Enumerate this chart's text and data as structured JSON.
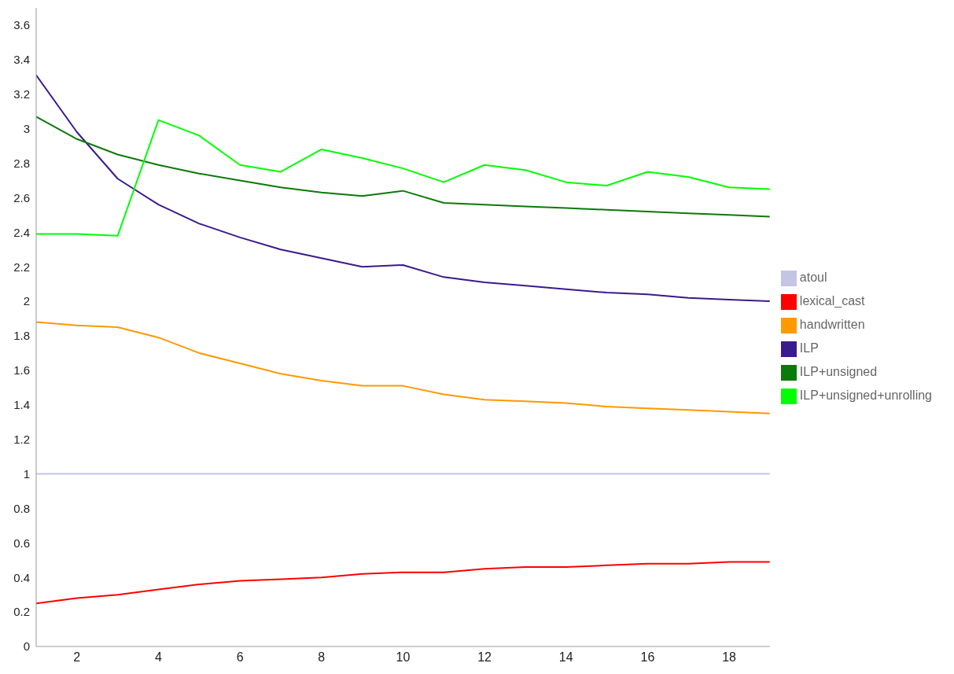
{
  "chart_data": {
    "type": "line",
    "x": [
      1,
      2,
      3,
      4,
      5,
      6,
      7,
      8,
      9,
      10,
      11,
      12,
      13,
      14,
      15,
      16,
      17,
      18,
      19
    ],
    "series": [
      {
        "name": "atoul",
        "color": "#c4c4e4",
        "values": [
          1,
          1,
          1,
          1,
          1,
          1,
          1,
          1,
          1,
          1,
          1,
          1,
          1,
          1,
          1,
          1,
          1,
          1,
          1
        ]
      },
      {
        "name": "lexical_cast",
        "color": "#ff0000",
        "values": [
          0.25,
          0.28,
          0.3,
          0.33,
          0.36,
          0.38,
          0.39,
          0.4,
          0.42,
          0.43,
          0.43,
          0.45,
          0.46,
          0.46,
          0.47,
          0.48,
          0.48,
          0.49,
          0.49
        ]
      },
      {
        "name": "handwritten",
        "color": "#ff9900",
        "values": [
          1.88,
          1.86,
          1.85,
          1.79,
          1.7,
          1.64,
          1.58,
          1.54,
          1.51,
          1.51,
          1.46,
          1.43,
          1.42,
          1.41,
          1.39,
          1.38,
          1.37,
          1.36,
          1.35
        ]
      },
      {
        "name": "ILP",
        "color": "#3b1a8c",
        "values": [
          3.31,
          2.98,
          2.71,
          2.56,
          2.45,
          2.37,
          2.3,
          2.25,
          2.2,
          2.21,
          2.14,
          2.11,
          2.09,
          2.07,
          2.05,
          2.04,
          2.02,
          2.01,
          2
        ]
      },
      {
        "name": "ILP+unsigned",
        "color": "#0a7a0a",
        "values": [
          3.07,
          2.94,
          2.85,
          2.79,
          2.74,
          2.7,
          2.66,
          2.63,
          2.61,
          2.64,
          2.57,
          2.56,
          2.55,
          2.54,
          2.53,
          2.52,
          2.51,
          2.5,
          2.49
        ]
      },
      {
        "name": "ILP+unsigned+unrolling",
        "color": "#00ff00",
        "values": [
          2.39,
          2.39,
          2.38,
          3.05,
          2.96,
          2.79,
          2.75,
          2.88,
          2.83,
          2.77,
          2.69,
          2.79,
          2.76,
          2.69,
          2.67,
          2.75,
          2.72,
          2.66,
          2.65
        ]
      }
    ],
    "xlim": [
      1,
      19
    ],
    "xticks": [
      2,
      4,
      6,
      8,
      10,
      12,
      14,
      16,
      18
    ],
    "ylim": [
      0,
      3.7
    ],
    "yticks": [
      0,
      0.2,
      0.4,
      0.6,
      0.8,
      1,
      1.2,
      1.4,
      1.6,
      1.8,
      2,
      2.2,
      2.4,
      2.6,
      2.8,
      3,
      3.2,
      3.4,
      3.6
    ],
    "grid": false,
    "legend": "right",
    "marker": "none",
    "line_style": "solid"
  }
}
